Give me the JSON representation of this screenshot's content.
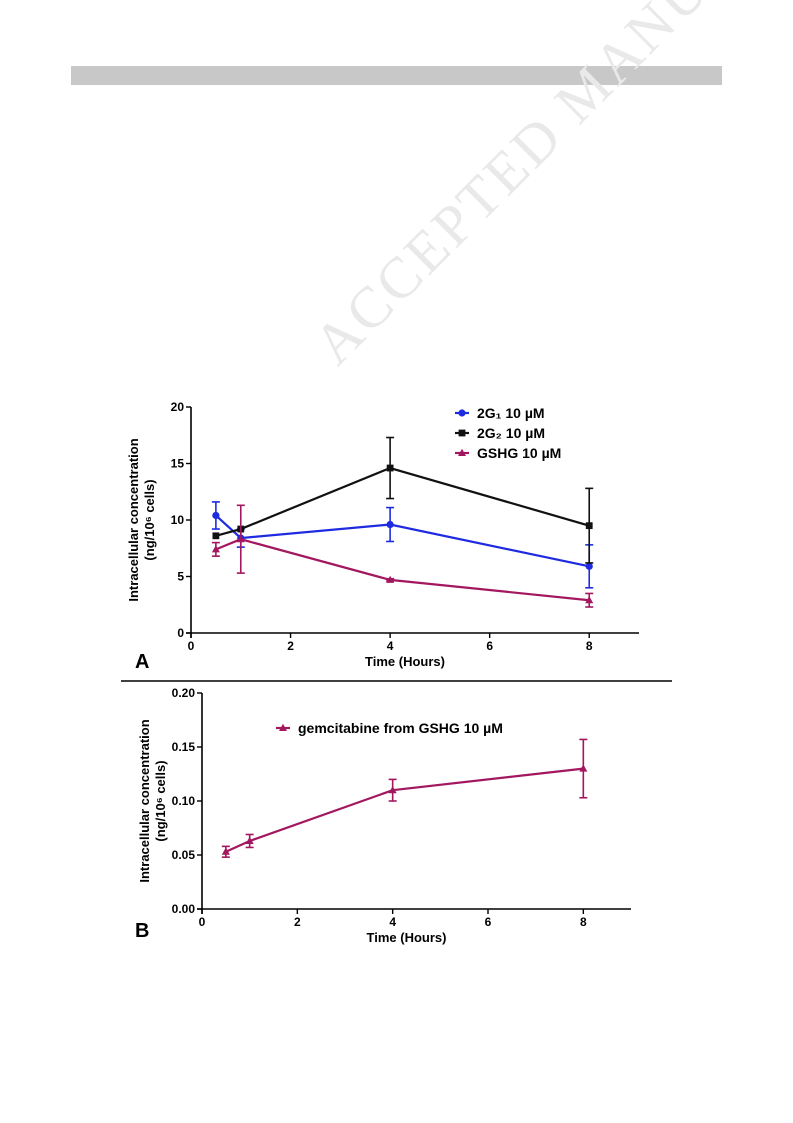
{
  "watermark": "ACCEPTED MANUSCRIPT",
  "colors": {
    "blue": "#1f2be0",
    "black": "#111111",
    "magenta": "#a3175f",
    "header": "#c8c8c8"
  },
  "chart_data": [
    {
      "type": "line",
      "panel_label": "A",
      "title": "",
      "xlabel": "Time (Hours)",
      "ylabel_line1": "Intracellular concentration",
      "ylabel_line2": "(ng/10⁶ cells)",
      "xlim": [
        0,
        9
      ],
      "ylim": [
        0,
        20
      ],
      "xticks": [
        0,
        2,
        4,
        6,
        8
      ],
      "yticks": [
        0,
        5,
        10,
        15,
        20
      ],
      "ytick_labels": [
        "0",
        "5",
        "10",
        "15",
        "20"
      ],
      "legend_position": "top-right",
      "series": [
        {
          "name": "2G₁ 10 µM",
          "color": "#1f2be0",
          "marker": "circle",
          "x": [
            0.5,
            1,
            4,
            8
          ],
          "y": [
            10.4,
            8.4,
            9.6,
            5.9
          ],
          "err": [
            1.2,
            0.8,
            1.5,
            1.9
          ]
        },
        {
          "name": "2G₂ 10 µM",
          "color": "#111111",
          "marker": "square",
          "x": [
            0.5,
            1,
            4,
            8
          ],
          "y": [
            8.6,
            9.2,
            14.6,
            9.5
          ],
          "err": [
            0,
            0,
            2.7,
            3.3
          ]
        },
        {
          "name": "GSHG 10 µM",
          "color": "#a3175f",
          "marker": "triangle",
          "x": [
            0.5,
            1,
            4,
            8
          ],
          "y": [
            7.4,
            8.3,
            4.7,
            2.9
          ],
          "err": [
            0.6,
            3.0,
            0.1,
            0.6
          ]
        }
      ]
    },
    {
      "type": "line",
      "panel_label": "B",
      "title": "",
      "xlabel": "Time (Hours)",
      "ylabel_line1": "Intracellular concentration",
      "ylabel_line2": "(ng/10⁶ cells)",
      "xlim": [
        0,
        9
      ],
      "ylim": [
        0,
        0.2
      ],
      "xticks": [
        0,
        2,
        4,
        6,
        8
      ],
      "yticks": [
        0,
        0.05,
        0.1,
        0.15,
        0.2
      ],
      "ytick_labels": [
        "0.00",
        "0.05",
        "0.10",
        "0.15",
        "0.20"
      ],
      "legend_position": "top-center",
      "series": [
        {
          "name": "gemcitabine from GSHG 10 µM",
          "color": "#a3175f",
          "marker": "triangle",
          "x": [
            0.5,
            1,
            4,
            8
          ],
          "y": [
            0.053,
            0.063,
            0.11,
            0.13
          ],
          "err": [
            0.005,
            0.006,
            0.01,
            0.027
          ]
        }
      ]
    }
  ]
}
